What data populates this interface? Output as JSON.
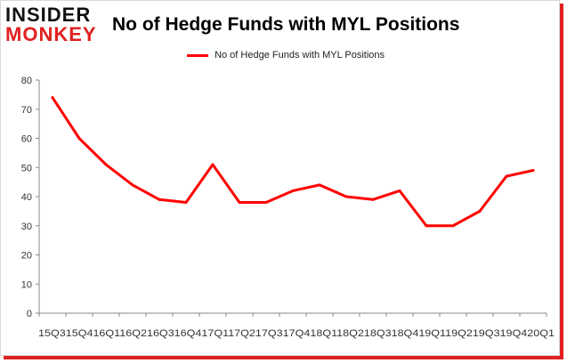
{
  "logo": {
    "line1": "INSIDER",
    "line2": "MONKEY"
  },
  "chart_data": {
    "type": "line",
    "title": "No of Hedge Funds with MYL Positions",
    "xlabel": "",
    "ylabel": "",
    "categories": [
      "Q3 15",
      "Q4 15",
      "Q1 16",
      "Q2 16",
      "Q3 16",
      "Q4 16",
      "Q1 17",
      "Q2 17",
      "Q3 17",
      "Q4 17",
      "Q1 18",
      "Q2 18",
      "Q3 18",
      "Q4 18",
      "Q1 19",
      "Q2 19",
      "Q3 19",
      "Q4 19",
      "Q1 20"
    ],
    "tick_labels_text": "15Q315Q416Q116Q216Q316Q417Q117Q217Q317Q418Q118Q218Q318Q419Q119Q219Q319Q420Q1",
    "series": [
      {
        "name": "No of Hedge Funds with MYL Positions",
        "color": "#ff0000",
        "values": [
          74,
          60,
          51,
          44,
          39,
          38,
          51,
          38,
          38,
          42,
          44,
          40,
          39,
          42,
          30,
          30,
          35,
          47,
          49
        ]
      }
    ],
    "ylim": [
      0,
      80
    ],
    "yticks": [
      0,
      10,
      20,
      30,
      40,
      50,
      60,
      70,
      80
    ],
    "grid": false,
    "legend": "top-center"
  }
}
